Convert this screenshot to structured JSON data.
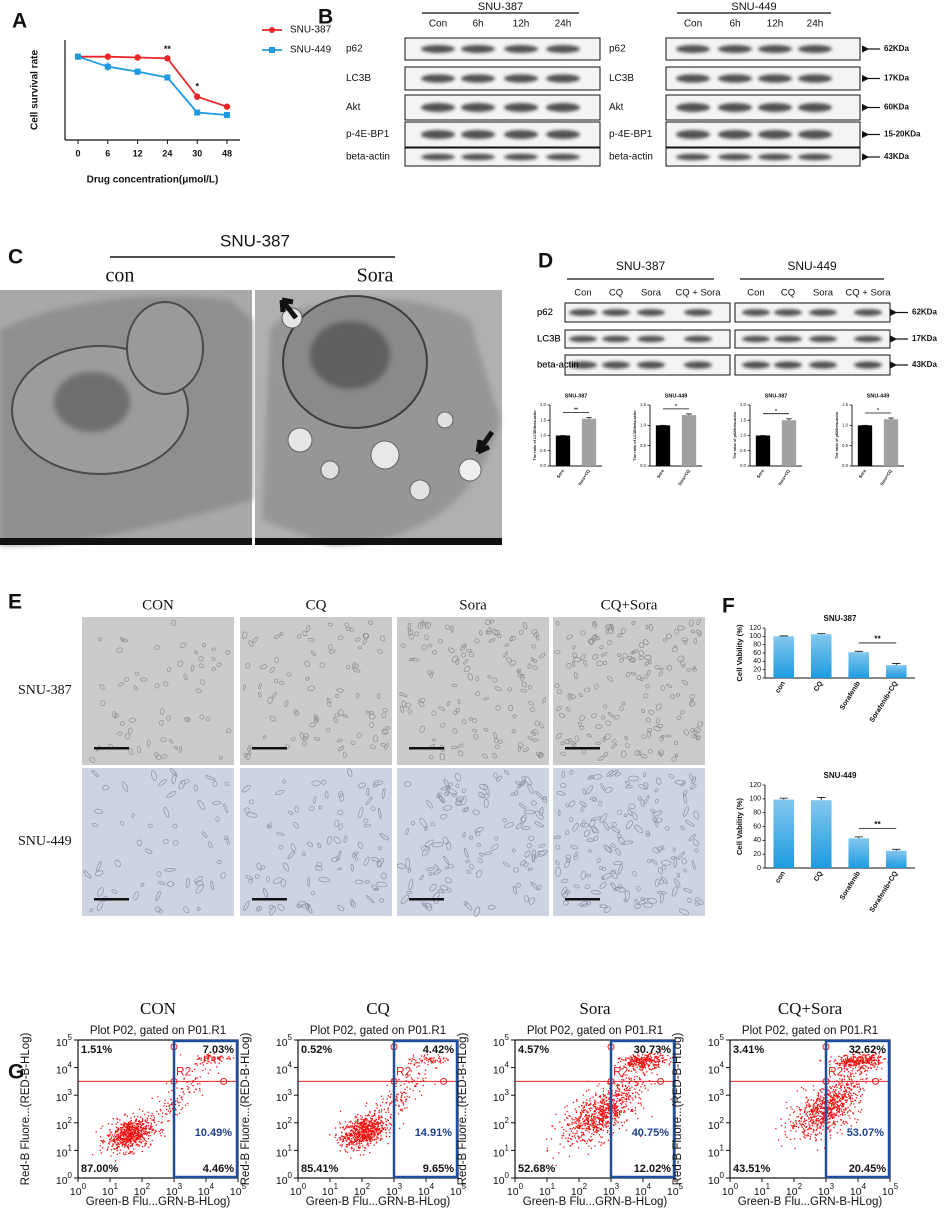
{
  "panel_letters": [
    "A",
    "B",
    "C",
    "D",
    "E",
    "F",
    "G"
  ],
  "chart_data": [
    {
      "type": "line",
      "x_label": "Drug concentration(μmol/L)",
      "y_label": "Cell survival rate",
      "categories": [
        "0",
        "6",
        "12",
        "24",
        "30",
        "48"
      ],
      "series": [
        {
          "name": "SNU-387",
          "color": "#e8262a",
          "values": [
            100,
            100,
            99,
            98,
            52,
            40
          ],
          "errors": [
            2,
            4,
            3,
            3,
            4,
            2
          ]
        },
        {
          "name": "SNU-449",
          "color": "#1e9be0",
          "values": [
            100,
            88,
            82,
            75,
            33,
            30
          ],
          "errors": [
            2,
            5,
            4,
            3,
            3,
            3
          ]
        }
      ],
      "ylim": [
        0,
        120
      ],
      "annotations": [
        {
          "text": "**",
          "x": "24"
        },
        {
          "text": "*",
          "x": "30"
        }
      ]
    },
    {
      "type": "bar",
      "title": "SNU-387",
      "y_label": "The ratio of LC3B/beta-actin",
      "categories": [
        "Sora",
        "Sora+CQ"
      ],
      "values": [
        1.0,
        1.55
      ],
      "errors": [
        0,
        0.04
      ],
      "colors": [
        "#000000",
        "#a0a0a0"
      ],
      "ylim": [
        0,
        2
      ],
      "yticks": [
        {
          "value": 0,
          "label": "0.0"
        },
        0.5,
        {
          "value": 1,
          "label": "1.0"
        },
        1.5,
        {
          "value": 2,
          "label": "2.0"
        }
      ],
      "significance": "**"
    },
    {
      "type": "bar",
      "title": "SNU-449",
      "y_label": "The ratio of LC3B/beta-actin",
      "categories": [
        "Sora",
        "Sora+CQ"
      ],
      "values": [
        1.0,
        1.25
      ],
      "errors": [
        0,
        0.03
      ],
      "colors": [
        "#000000",
        "#a0a0a0"
      ],
      "ylim": [
        0,
        1.5
      ],
      "yticks": [
        {
          "value": 0,
          "label": "0.0"
        },
        0.5,
        {
          "value": 1,
          "label": "1.0"
        },
        1.5
      ],
      "significance": "*"
    },
    {
      "type": "bar",
      "title": "SNU-387",
      "y_label": "The ratio of p62/beta-actin",
      "categories": [
        "Sora",
        "Sora+CQ"
      ],
      "values": [
        1.0,
        1.5
      ],
      "errors": [
        0,
        0.05
      ],
      "colors": [
        "#000000",
        "#a0a0a0"
      ],
      "ylim": [
        0,
        2
      ],
      "yticks": [
        {
          "value": 0,
          "label": "0.0"
        },
        0.5,
        {
          "value": 1,
          "label": "1.0"
        },
        1.5,
        {
          "value": 2,
          "label": "2.0"
        }
      ],
      "significance": "*"
    },
    {
      "type": "bar",
      "title": "SNU-449",
      "y_label": "The ratio of p62/beta-actin",
      "categories": [
        "Sora",
        "Sora+CQ"
      ],
      "values": [
        1.0,
        1.15
      ],
      "errors": [
        0,
        0.03
      ],
      "colors": [
        "#000000",
        "#a0a0a0"
      ],
      "ylim": [
        0,
        1.5
      ],
      "yticks": [
        {
          "value": 0,
          "label": "0.0"
        },
        0.5,
        {
          "value": 1,
          "label": "1.0"
        },
        1.5
      ],
      "significance": "*"
    },
    {
      "type": "bar",
      "title": "SNU-387",
      "y_label": "Cell Vability (%)",
      "categories": [
        "con",
        "CQ",
        "Sorafenib",
        "Sorafenib+CQ"
      ],
      "values": [
        100,
        105,
        62,
        31
      ],
      "errors": [
        1,
        1.5,
        2,
        4
      ],
      "color": "#1e9be0",
      "ylim": [
        0,
        120
      ],
      "yticks": [
        0,
        20,
        40,
        60,
        80,
        100,
        120
      ],
      "significance": "**"
    },
    {
      "type": "bar",
      "title": "SNU-449",
      "y_label": "Cell Vability (%)",
      "categories": [
        "con",
        "CQ",
        "Sorafenib",
        "Sorafenib+CQ"
      ],
      "values": [
        99,
        98,
        43,
        25
      ],
      "errors": [
        2,
        4,
        2,
        2
      ],
      "color": "#1e9be0",
      "ylim": [
        0,
        120
      ],
      "yticks": [
        0,
        20,
        40,
        60,
        80,
        100,
        120
      ],
      "significance": "**"
    }
  ],
  "blot_b": {
    "groups": [
      {
        "title": "SNU-387",
        "lanes": [
          "Con",
          "6h",
          "12h",
          "24h"
        ]
      },
      {
        "title": "SNU-449",
        "lanes": [
          "Con",
          "6h",
          "12h",
          "24h"
        ]
      }
    ],
    "proteins": [
      "p62",
      "LC3B",
      "Akt",
      "p-4E-BP1",
      "beta-actin"
    ],
    "sizes": [
      "62KDa",
      "17KDa",
      "60KDa",
      "15-20KDa",
      "43KDa"
    ]
  },
  "tem_c": {
    "title": "SNU-387",
    "conditions": [
      "con",
      "Sora"
    ]
  },
  "blot_d": {
    "groups": [
      {
        "title": "SNU-387",
        "lanes": [
          "Con",
          "CQ",
          "Sora",
          "CQ + Sora"
        ]
      },
      {
        "title": "SNU-449",
        "lanes": [
          "Con",
          "CQ",
          "Sora",
          "CQ + Sora"
        ]
      }
    ],
    "proteins": [
      "p62",
      "LC3B",
      "beta-actin"
    ],
    "sizes": [
      "62KDa",
      "17KDa",
      "43KDa"
    ]
  },
  "micro_e": {
    "columns": [
      "CON",
      "CQ",
      "Sora",
      "CQ+Sora"
    ],
    "rows": [
      "SNU-387",
      "SNU-449"
    ]
  },
  "flow_g": {
    "plot_title": "Plot P02, gated on P01.R1",
    "y_label": "Red-B Fluore...(RED-B-HLog)",
    "x_label": "Green-B Flu...GRN-B-HLog)",
    "gate": "R2",
    "tick_base": "10",
    "tick_exponents": [
      0,
      1,
      2,
      3,
      4,
      5
    ],
    "panels": [
      {
        "title": "CON",
        "upper_left": "1.51%",
        "upper_right": "7.03%",
        "lower_left": "87.00%",
        "lower_right": "4.46%",
        "gated": "10.49%"
      },
      {
        "title": "CQ",
        "upper_left": "0.52%",
        "upper_right": "4.42%",
        "lower_left": "85.41%",
        "lower_right": "9.65%",
        "gated": "14.91%"
      },
      {
        "title": "Sora",
        "upper_left": "4.57%",
        "upper_right": "30.73%",
        "lower_left": "52.68%",
        "lower_right": "12.02%",
        "gated": "40.75%"
      },
      {
        "title": "CQ+Sora",
        "upper_left": "3.41%",
        "upper_right": "32.62%",
        "lower_left": "43.51%",
        "lower_right": "20.45%",
        "gated": "53.07%"
      }
    ]
  }
}
